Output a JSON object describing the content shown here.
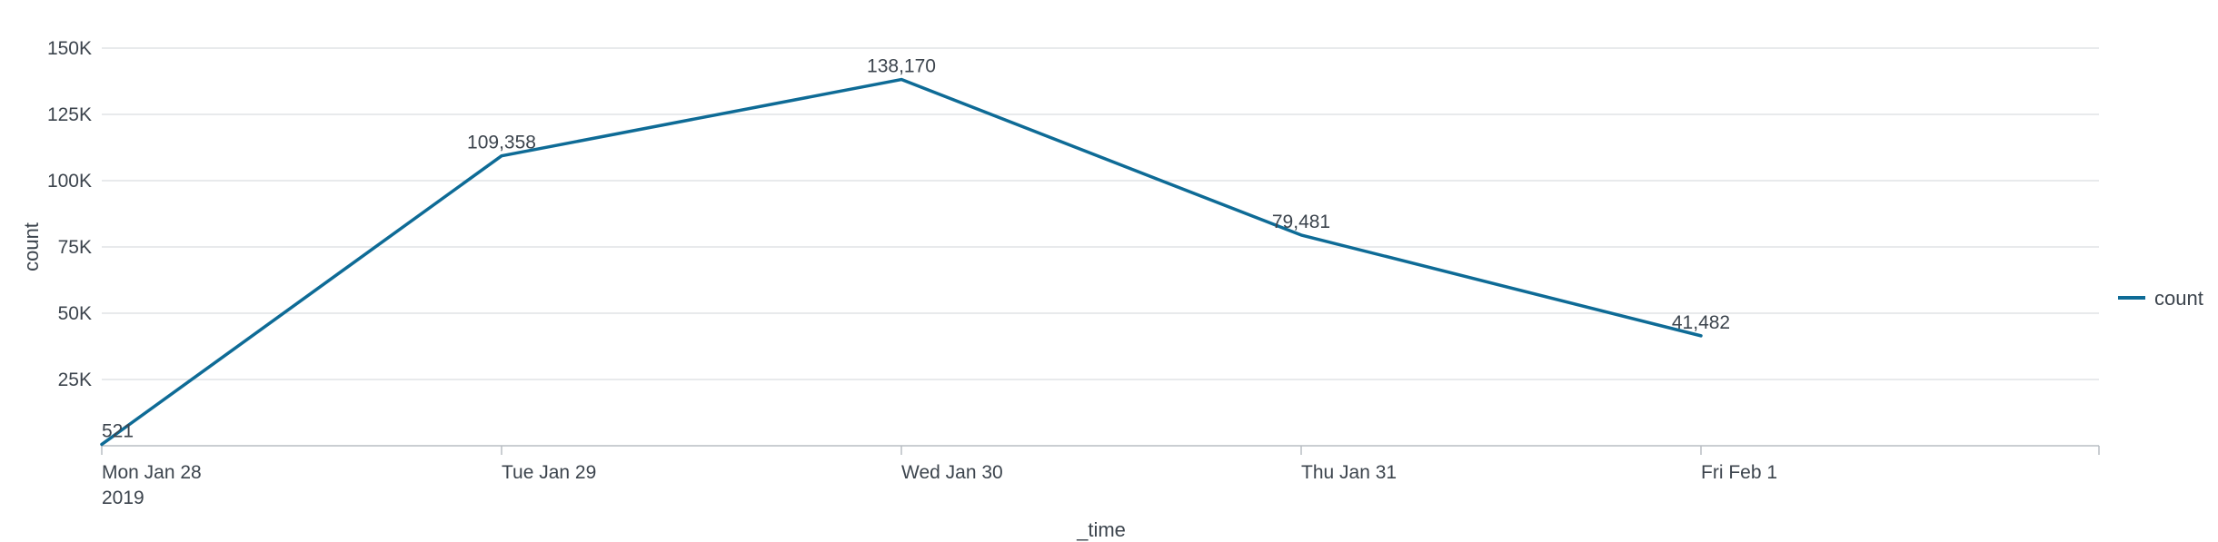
{
  "chart_data": {
    "type": "line",
    "x": [
      "Mon Jan 28",
      "Tue Jan 29",
      "Wed Jan 30",
      "Thu Jan 31",
      "Fri Feb 1"
    ],
    "x_secondary_label": "2019",
    "series": [
      {
        "name": "count",
        "values": [
          521,
          109358,
          138170,
          79481,
          41482
        ],
        "color": "#0e6b96"
      }
    ],
    "data_labels": [
      "521",
      "109,358",
      "138,170",
      "79,481",
      "41,482"
    ],
    "xlabel": "_time",
    "ylabel": "count",
    "ylim": [
      0,
      150000
    ],
    "y_ticks": [
      {
        "value": 25000,
        "label": "25K"
      },
      {
        "value": 50000,
        "label": "50K"
      },
      {
        "value": 75000,
        "label": "75K"
      },
      {
        "value": 100000,
        "label": "100K"
      },
      {
        "value": 125000,
        "label": "125K"
      },
      {
        "value": 150000,
        "label": "150K"
      }
    ],
    "grid": true,
    "legend": {
      "position": "right",
      "entries": [
        "count"
      ]
    }
  }
}
